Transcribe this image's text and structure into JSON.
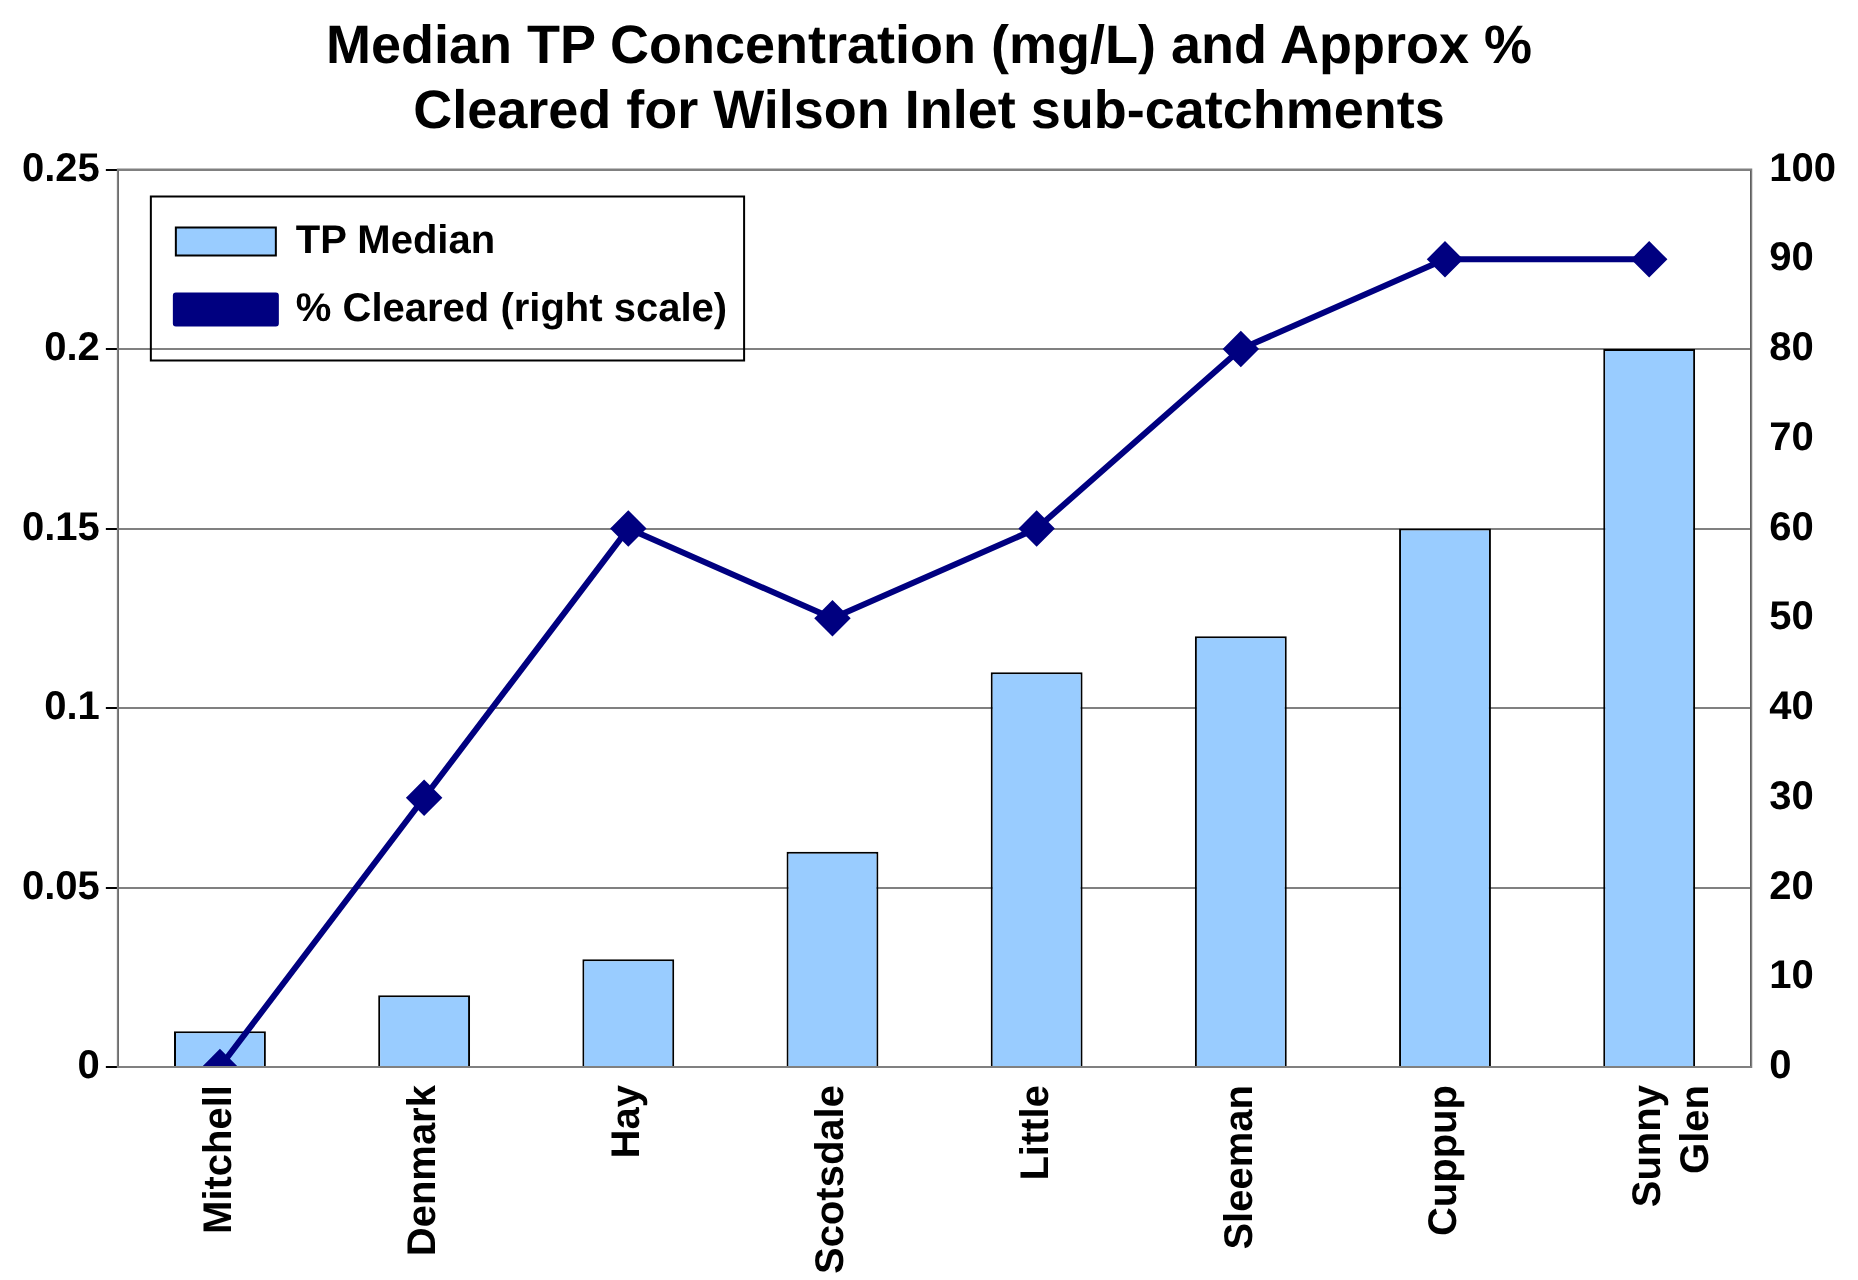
{
  "chart_data": {
    "type": "bar",
    "title": "Median TP Concentration (mg/L) and Approx % Cleared for Wilson Inlet sub-catchments",
    "categories": [
      "Mitchell",
      "Denmark",
      "Hay",
      "Scotsdale",
      "Little",
      "Sleeman",
      "Cuppup",
      "Sunny Glen"
    ],
    "series": [
      {
        "name": "TP Median",
        "color": "#99ccff",
        "values": [
          0.01,
          0.02,
          0.03,
          0.06,
          0.11,
          0.12,
          0.15,
          0.2
        ]
      },
      {
        "name": "% Cleared (right scale)",
        "type": "line",
        "axis": "y2",
        "color": "#000080",
        "values": [
          0,
          30,
          60,
          50,
          60,
          80,
          90,
          90
        ]
      }
    ],
    "ylim": [
      0,
      0.25
    ],
    "yticks": [
      0,
      0.05,
      0.1,
      0.15,
      0.2,
      0.25
    ],
    "y2lim": [
      0,
      100
    ],
    "y2ticks": [
      0,
      10,
      20,
      30,
      40,
      50,
      60,
      70,
      80,
      90,
      100
    ],
    "grid": "y",
    "legend": "top left",
    "marker": "diamond",
    "line_style": "solid"
  }
}
